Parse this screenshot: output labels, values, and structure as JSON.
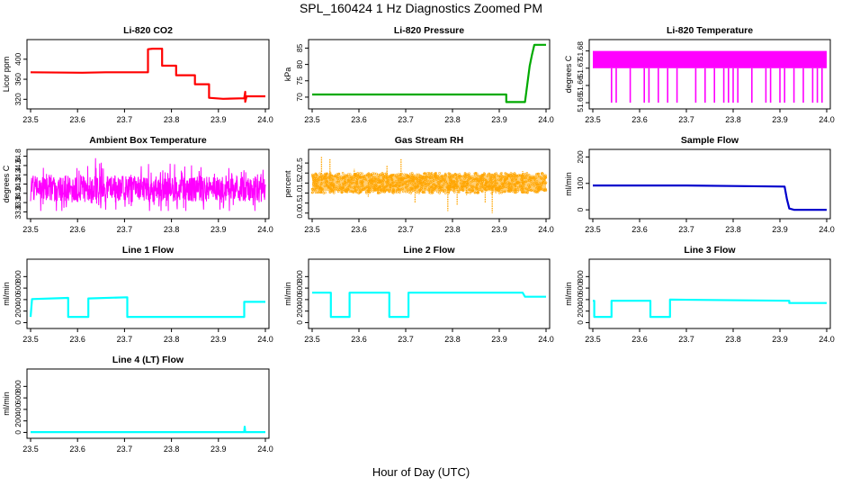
{
  "figure": {
    "title": "SPL_160424  1 Hz Diagnostics Zoomed PM",
    "xlabel": "Hour of Day (UTC)"
  },
  "chart_data": [
    {
      "type": "line",
      "title": "Li-820 CO2",
      "ylabel": "Licor ppm",
      "color": "#ff0000",
      "xlim": [
        23.5,
        24.0
      ],
      "ylim": [
        308,
        432
      ],
      "xticks": [
        "23.5",
        "23.6",
        "23.7",
        "23.8",
        "23.9",
        "24.0"
      ],
      "yticks": [
        {
          "v": 320,
          "label": "320"
        },
        {
          "v": 360,
          "label": "360"
        },
        {
          "v": 400,
          "label": "400"
        }
      ],
      "x": [
        23.5,
        23.61,
        23.66,
        23.75,
        23.75,
        23.76,
        23.78,
        23.78,
        23.81,
        23.81,
        23.85,
        23.85,
        23.88,
        23.88,
        23.91,
        23.955,
        23.957,
        23.957,
        23.96,
        24.0
      ],
      "y": [
        374,
        373,
        374,
        374,
        420,
        421,
        421,
        387,
        387,
        368,
        368,
        350,
        350,
        323,
        321,
        322,
        335,
        315,
        326,
        326
      ]
    },
    {
      "type": "line",
      "title": "Li-820 Pressure",
      "ylabel": "kPa",
      "color": "#00aa00",
      "xlim": [
        23.5,
        24.0
      ],
      "ylim": [
        67.5,
        86.5
      ],
      "xticks": [
        "23.5",
        "23.6",
        "23.7",
        "23.8",
        "23.9",
        "24.0"
      ],
      "yticks": [
        {
          "v": 70,
          "label": "70"
        },
        {
          "v": 75,
          "label": "75"
        },
        {
          "v": 80,
          "label": "80"
        },
        {
          "v": 85,
          "label": "85"
        }
      ],
      "x": [
        23.5,
        23.7,
        23.9,
        23.915,
        23.915,
        23.955,
        23.96,
        23.965,
        23.97,
        23.975,
        24.0
      ],
      "y": [
        70.8,
        70.8,
        70.8,
        70.8,
        68.5,
        68.5,
        74.0,
        79.5,
        83.0,
        86.0,
        86.0
      ]
    },
    {
      "type": "line",
      "title": "Li-820 Temperature",
      "ylabel": "degrees C",
      "color": "#ff00ff",
      "xlim": [
        23.5,
        24.0
      ],
      "ylim": [
        51.6485,
        51.6845
      ],
      "xticks": [
        "23.5",
        "23.6",
        "23.7",
        "23.8",
        "23.9",
        "24.0"
      ],
      "yticks": [
        {
          "v": 51.65,
          "label": "51.65"
        },
        {
          "v": 51.66,
          "label": "51.66"
        },
        {
          "v": 51.67,
          "label": "51.67"
        },
        {
          "v": 51.68,
          "label": "51.68"
        }
      ],
      "note": "value toggles between 51.67 and 51.68 at 1 Hz, with occasional drops to 51.65",
      "x": [
        23.5,
        24.0
      ],
      "y": [
        51.67,
        51.68
      ],
      "drops_x": [
        23.54,
        23.55,
        23.58,
        23.61,
        23.62,
        23.64,
        23.66,
        23.68,
        23.72,
        23.74,
        23.76,
        23.78,
        23.79,
        23.8,
        23.81,
        23.84,
        23.87,
        23.88,
        23.9,
        23.91,
        23.93,
        23.95,
        23.97,
        23.98,
        23.99
      ],
      "drop_value": 51.65
    },
    {
      "type": "line",
      "title": "Ambient Box Temperature",
      "ylabel": "degrees C",
      "color": "#ff00ff",
      "xlim": [
        23.5,
        24.0
      ],
      "ylim": [
        33.53,
        34.87
      ],
      "xticks": [
        "23.5",
        "23.6",
        "23.7",
        "23.8",
        "23.9",
        "24.0"
      ],
      "yticks": [
        {
          "v": 33.6,
          "label": "33.6"
        },
        {
          "v": 33.8,
          "label": "33.8"
        },
        {
          "v": 34.0,
          "label": "34.0"
        },
        {
          "v": 34.2,
          "label": "34.2"
        },
        {
          "v": 34.4,
          "label": "34.4"
        },
        {
          "v": 34.6,
          "label": "34.6"
        },
        {
          "v": 34.8,
          "label": "34.8"
        }
      ],
      "note": "noisy signal centred near 34.1, range about 33.6 to 34.8",
      "x": [
        23.5,
        24.0
      ],
      "y": [
        34.1,
        34.1
      ],
      "noise": [
        33.62,
        34.82
      ]
    },
    {
      "type": "scatter",
      "title": "Gas Stream RH",
      "ylabel": "percent",
      "color": "#ffa500",
      "xlim": [
        23.5,
        24.0
      ],
      "ylim": [
        -0.1,
        3.0
      ],
      "xticks": [
        "23.5",
        "23.6",
        "23.7",
        "23.8",
        "23.9",
        "24.0"
      ],
      "yticks": [
        {
          "v": 0,
          "label": "0.0"
        },
        {
          "v": 0.5,
          "label": "0.5"
        },
        {
          "v": 1.0,
          "label": "1.0"
        },
        {
          "v": 1.5,
          "label": "1.5"
        },
        {
          "v": 2.0,
          "label": "2.0"
        },
        {
          "v": 2.5,
          "label": "2.5"
        }
      ],
      "note": "dense band centred near 1.5 percent, spikes to about 2.8 and dips toward 0",
      "x": [
        23.5,
        24.0
      ],
      "y": [
        1.5,
        1.5
      ],
      "band": [
        1.0,
        2.0
      ],
      "spikes_x": [
        23.52,
        23.538,
        23.59,
        23.62,
        23.66,
        23.69,
        23.72,
        23.79,
        23.81,
        23.83,
        23.87,
        23.885,
        23.95
      ],
      "spikes_y": [
        2.8,
        2.7,
        2.2,
        0.8,
        2.4,
        2.7,
        0.5,
        0.1,
        0.4,
        0.9,
        0.5,
        0.0,
        2.1
      ]
    },
    {
      "type": "line",
      "title": "Sample Flow",
      "ylabel": "ml/min",
      "color": "#0000cc",
      "xlim": [
        23.5,
        24.0
      ],
      "ylim": [
        -20,
        215
      ],
      "xticks": [
        "23.5",
        "23.6",
        "23.7",
        "23.8",
        "23.9",
        "24.0"
      ],
      "yticks": [
        {
          "v": 0,
          "label": "0"
        },
        {
          "v": 100,
          "label": "100"
        },
        {
          "v": 200,
          "label": "200"
        }
      ],
      "x": [
        23.5,
        23.7,
        23.8,
        23.91,
        23.91,
        23.915,
        23.92,
        23.93,
        24.0
      ],
      "y": [
        92,
        92,
        90,
        88,
        88,
        40,
        5,
        0,
        0
      ]
    },
    {
      "type": "line",
      "title": "Line 1 Flow",
      "ylabel": "ml/min",
      "color": "#00ffff",
      "xlim": [
        23.5,
        24.0
      ],
      "ylim": [
        -40,
        1040
      ],
      "xticks": [
        "23.5",
        "23.6",
        "23.7",
        "23.8",
        "23.9",
        "24.0"
      ],
      "yticks": [
        {
          "v": 0,
          "label": "0"
        },
        {
          "v": 200,
          "label": "200"
        },
        {
          "v": 400,
          "label": "400"
        },
        {
          "v": 600,
          "label": "600"
        },
        {
          "v": 800,
          "label": "800"
        }
      ],
      "x": [
        23.5,
        23.503,
        23.58,
        23.58,
        23.623,
        23.623,
        23.706,
        23.706,
        23.955,
        23.955,
        24.0
      ],
      "y": [
        100,
        410,
        430,
        100,
        100,
        420,
        440,
        100,
        100,
        360,
        360
      ]
    },
    {
      "type": "line",
      "title": "Line 2 Flow",
      "ylabel": "ml/min",
      "color": "#00ffff",
      "xlim": [
        23.5,
        24.0
      ],
      "ylim": [
        -40,
        1040
      ],
      "xticks": [
        "23.5",
        "23.6",
        "23.7",
        "23.8",
        "23.9",
        "24.0"
      ],
      "yticks": [
        {
          "v": 0,
          "label": "0"
        },
        {
          "v": 200,
          "label": "200"
        },
        {
          "v": 400,
          "label": "400"
        },
        {
          "v": 600,
          "label": "600"
        },
        {
          "v": 800,
          "label": "800"
        }
      ],
      "x": [
        23.5,
        23.54,
        23.54,
        23.58,
        23.58,
        23.665,
        23.665,
        23.706,
        23.706,
        23.95,
        23.955,
        24.0
      ],
      "y": [
        520,
        520,
        100,
        100,
        520,
        520,
        100,
        100,
        520,
        520,
        450,
        450
      ]
    },
    {
      "type": "line",
      "title": "Line 3 Flow",
      "ylabel": "ml/min",
      "color": "#00ffff",
      "xlim": [
        23.5,
        24.0
      ],
      "ylim": [
        -40,
        1040
      ],
      "xticks": [
        "23.5",
        "23.6",
        "23.7",
        "23.8",
        "23.9",
        "24.0"
      ],
      "yticks": [
        {
          "v": 0,
          "label": "0"
        },
        {
          "v": 200,
          "label": "200"
        },
        {
          "v": 400,
          "label": "400"
        },
        {
          "v": 600,
          "label": "600"
        },
        {
          "v": 800,
          "label": "800"
        }
      ],
      "x": [
        23.5,
        23.503,
        23.503,
        23.54,
        23.54,
        23.623,
        23.623,
        23.665,
        23.665,
        23.92,
        23.92,
        24.0
      ],
      "y": [
        380,
        380,
        100,
        100,
        380,
        380,
        100,
        100,
        400,
        380,
        340,
        340
      ]
    },
    {
      "type": "line",
      "title": "Line 4 (LT) Flow",
      "ylabel": "ml/min",
      "color": "#00ffff",
      "xlim": [
        23.5,
        24.0
      ],
      "ylim": [
        -40,
        1040
      ],
      "xticks": [
        "23.5",
        "23.6",
        "23.7",
        "23.8",
        "23.9",
        "24.0"
      ],
      "yticks": [
        {
          "v": 0,
          "label": "0"
        },
        {
          "v": 200,
          "label": "200"
        },
        {
          "v": 400,
          "label": "400"
        },
        {
          "v": 600,
          "label": "600"
        },
        {
          "v": 800,
          "label": "800"
        }
      ],
      "x": [
        23.5,
        23.955,
        23.956,
        23.957,
        24.0
      ],
      "y": [
        5,
        5,
        100,
        5,
        5
      ]
    }
  ]
}
